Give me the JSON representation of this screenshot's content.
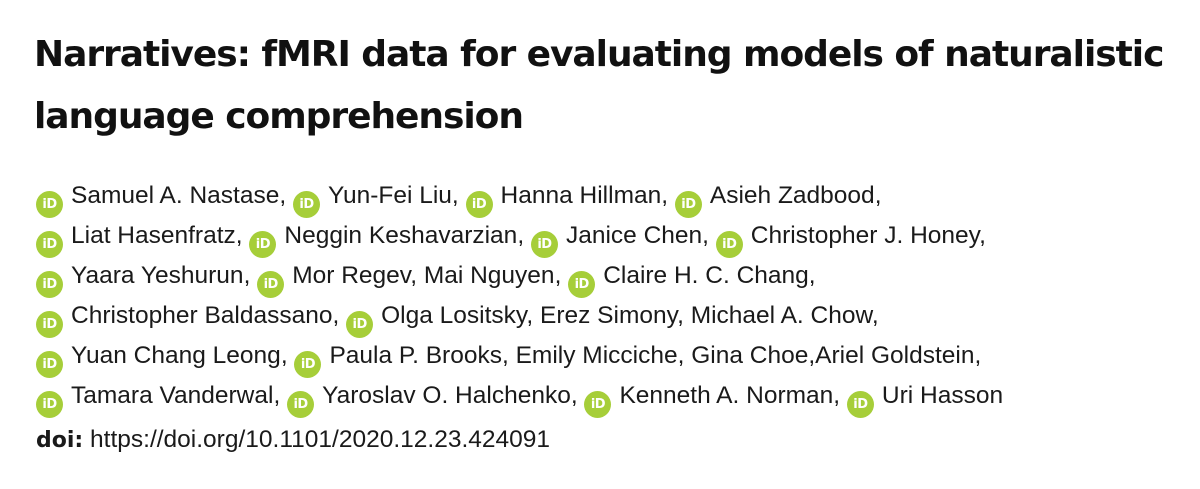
{
  "paper": {
    "title": "Narratives: fMRI data for evaluating models of naturalistic language comprehension",
    "orcid_icon_text": "iD",
    "author_lines": [
      [
        {
          "name": "Samuel A. Nastase",
          "orcid": true,
          "sep": ", "
        },
        {
          "name": "Yun-Fei Liu",
          "orcid": true,
          "sep": ", "
        },
        {
          "name": "Hanna Hillman",
          "orcid": true,
          "sep": ", "
        },
        {
          "name": "Asieh Zadbood",
          "orcid": true,
          "sep": ","
        }
      ],
      [
        {
          "name": "Liat Hasenfratz",
          "orcid": true,
          "sep": ", "
        },
        {
          "name": "Neggin Keshavarzian",
          "orcid": true,
          "sep": ", "
        },
        {
          "name": "Janice Chen",
          "orcid": true,
          "sep": ", "
        },
        {
          "name": "Christopher J. Honey",
          "orcid": true,
          "sep": ","
        }
      ],
      [
        {
          "name": "Yaara Yeshurun",
          "orcid": true,
          "sep": ", "
        },
        {
          "name": "Mor Regev",
          "orcid": true,
          "sep": ", "
        },
        {
          "name": "Mai Nguyen",
          "orcid": false,
          "sep": ", "
        },
        {
          "name": "Claire H. C. Chang",
          "orcid": true,
          "sep": ","
        }
      ],
      [
        {
          "name": "Christopher Baldassano",
          "orcid": true,
          "sep": ", "
        },
        {
          "name": "Olga Lositsky",
          "orcid": true,
          "sep": ", "
        },
        {
          "name": "Erez Simony",
          "orcid": false,
          "sep": ", "
        },
        {
          "name": "Michael A. Chow",
          "orcid": false,
          "sep": ","
        }
      ],
      [
        {
          "name": "Yuan Chang Leong",
          "orcid": true,
          "sep": ", "
        },
        {
          "name": "Paula P. Brooks",
          "orcid": true,
          "sep": ", "
        },
        {
          "name": "Emily Micciche",
          "orcid": false,
          "sep": ", "
        },
        {
          "name": "Gina Choe",
          "orcid": false,
          "sep": ","
        },
        {
          "name": "Ariel Goldstein",
          "orcid": false,
          "sep": ","
        }
      ],
      [
        {
          "name": "Tamara Vanderwal",
          "orcid": true,
          "sep": ", "
        },
        {
          "name": "Yaroslav O. Halchenko",
          "orcid": true,
          "sep": ", "
        },
        {
          "name": "Kenneth A. Norman",
          "orcid": true,
          "sep": ", "
        },
        {
          "name": "Uri Hasson",
          "orcid": true,
          "sep": ""
        }
      ]
    ],
    "doi_label": "doi:",
    "doi_url": "https://doi.org/10.1101/2020.12.23.424091",
    "colors": {
      "orcid": "#a6ce39",
      "text": "#111111"
    }
  }
}
